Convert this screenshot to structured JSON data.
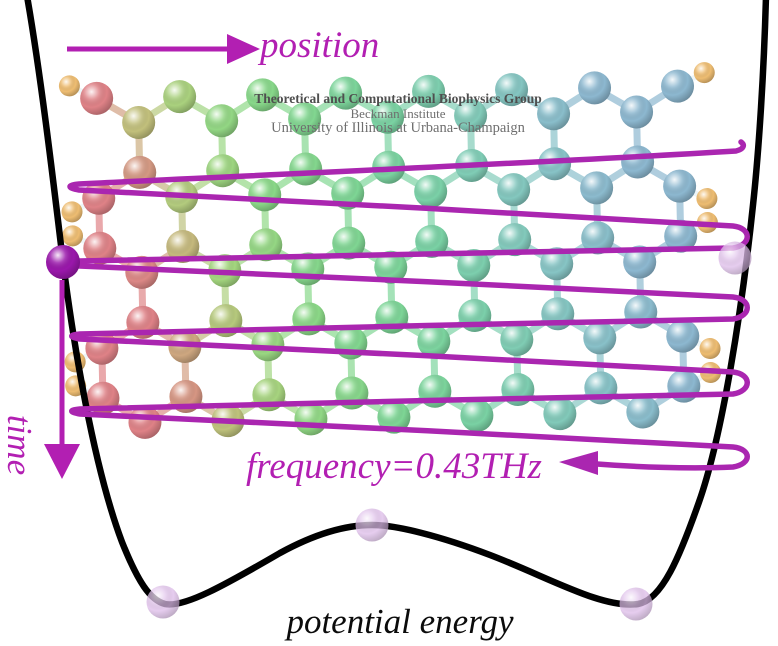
{
  "figure": {
    "labels": {
      "position": "position",
      "time": "time",
      "frequency": "frequency=0.43THz",
      "potential_energy": "potential energy"
    },
    "watermark": {
      "line1": "Theoretical and Computational Biophysics Group",
      "line2": "Beckman Institute",
      "line3": "University of Illinois at Urbana-Champaign"
    },
    "colors": {
      "accent": "#b21fb2",
      "trajectory": "#aa26b0",
      "curve": "#000000",
      "active_ball": "#9a17ab",
      "ghost_ball": "#debcea",
      "hydrogen": "#eebd72",
      "hydrogen_bond": "#eef6f8",
      "watermark_bold": "#4f4f4f",
      "watermark_light": "#6e6e6e",
      "atom_palette": [
        {
          "t": 0.0,
          "c": "#df8287"
        },
        {
          "t": 0.09,
          "c": "#c2c07c"
        },
        {
          "t": 0.18,
          "c": "#a4d67f"
        },
        {
          "t": 0.3,
          "c": "#8bd887"
        },
        {
          "t": 0.45,
          "c": "#7ed695"
        },
        {
          "t": 0.6,
          "c": "#7ad2a5"
        },
        {
          "t": 0.72,
          "c": "#80cdb5"
        },
        {
          "t": 0.85,
          "c": "#87c4c6"
        },
        {
          "t": 1.0,
          "c": "#8db8d0"
        }
      ]
    }
  }
}
